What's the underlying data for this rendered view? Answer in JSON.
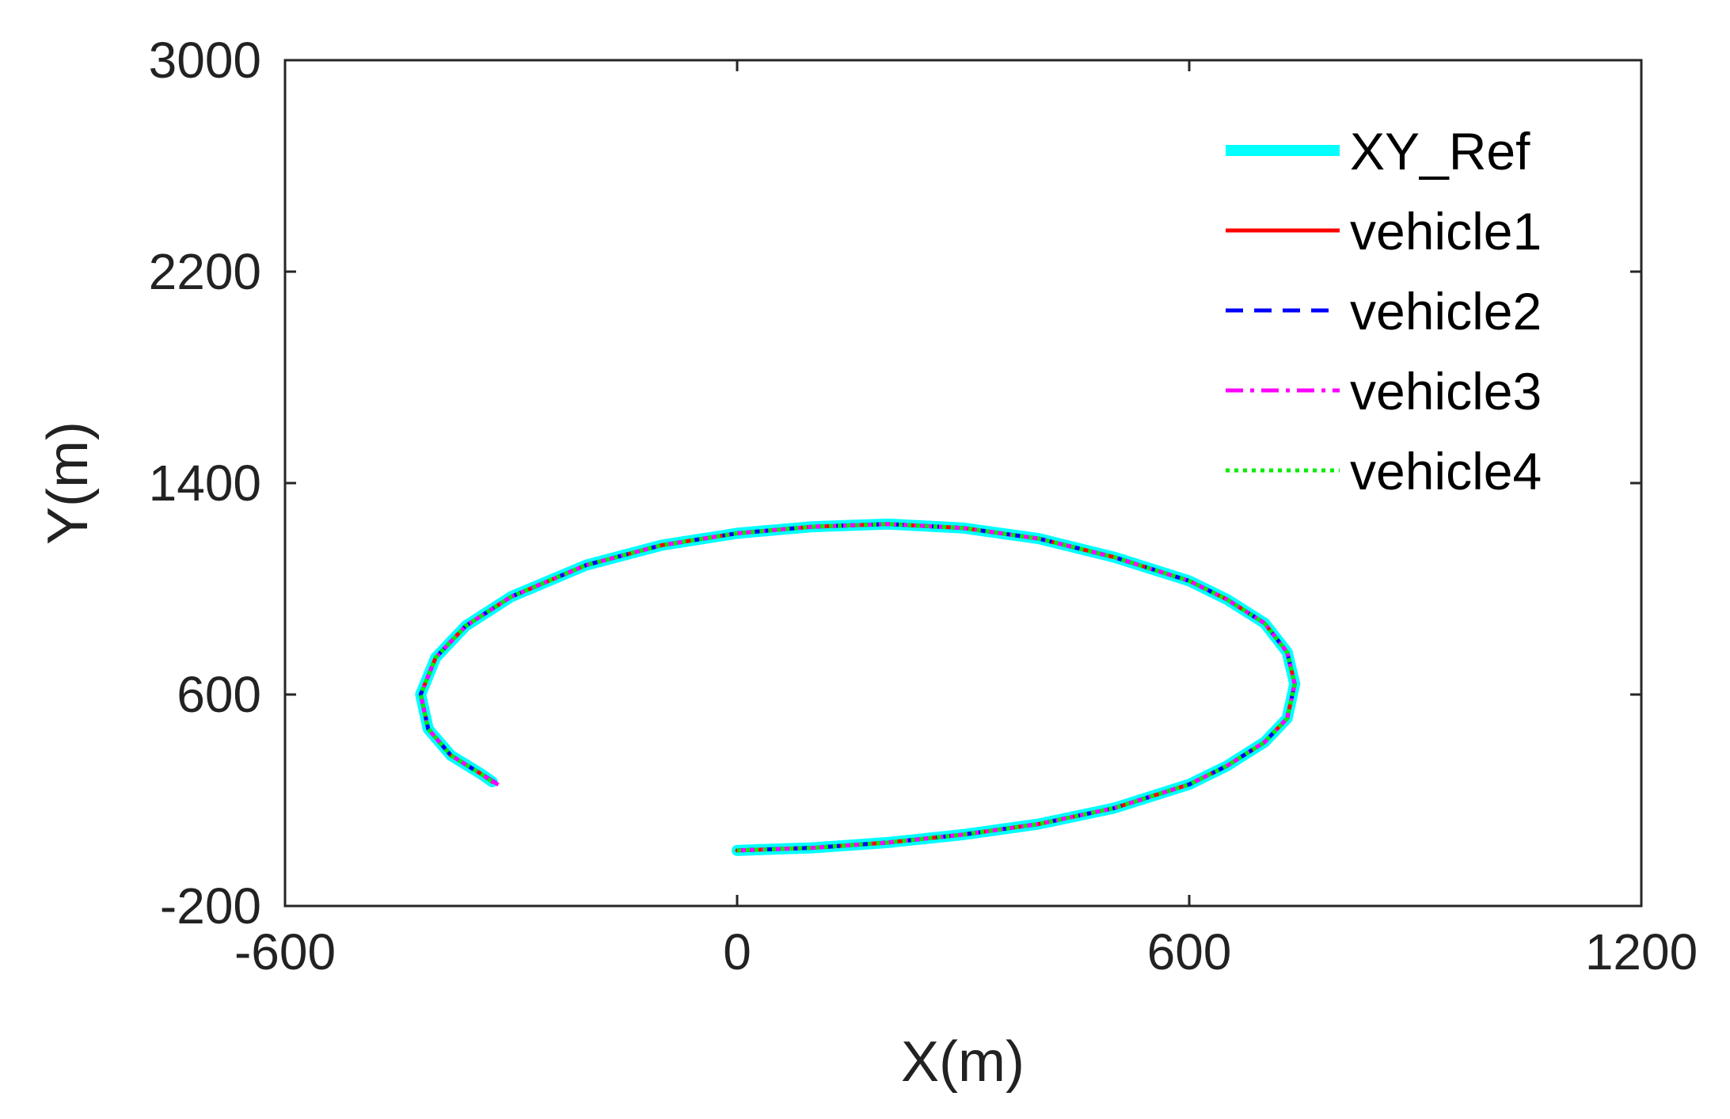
{
  "chart_data": {
    "type": "line",
    "title": "",
    "xlabel": "X(m)",
    "ylabel": "Y(m)",
    "xlim": [
      -600,
      1200
    ],
    "ylim": [
      -200,
      3000
    ],
    "xticks": [
      -600,
      0,
      600,
      1200
    ],
    "yticks": [
      -200,
      600,
      1400,
      2200,
      3000
    ],
    "xtick_labels": [
      "-600",
      "0",
      "600",
      "1200"
    ],
    "ytick_labels": [
      "-200",
      "600",
      "1400",
      "2200",
      "3000"
    ],
    "grid": false,
    "legend_position": "top-right",
    "series": [
      {
        "name": "XY_Ref",
        "color": "#00ffff",
        "style": "solid-thick",
        "x": [
          0,
          100,
          200,
          300,
          400,
          500,
          600,
          650,
          700,
          730,
          740,
          730,
          700,
          650,
          600,
          500,
          400,
          300,
          200,
          100,
          0,
          -100,
          -200,
          -300,
          -360,
          -400,
          -420,
          -410,
          -380,
          -340,
          -325
        ],
        "y": [
          10,
          20,
          40,
          70,
          110,
          170,
          260,
          330,
          420,
          510,
          640,
          760,
          870,
          960,
          1030,
          1120,
          1190,
          1230,
          1245,
          1235,
          1210,
          1165,
          1090,
          970,
          860,
          740,
          600,
          470,
          370,
          300,
          270
        ]
      },
      {
        "name": "vehicle1",
        "color": "#ff0000",
        "style": "solid",
        "x": [
          0,
          100,
          200,
          300,
          400,
          500,
          600,
          650,
          700,
          730,
          740,
          730,
          700,
          650,
          600,
          500,
          400,
          300,
          200,
          100,
          0,
          -100,
          -200,
          -300,
          -360,
          -400,
          -420,
          -410,
          -380,
          -340,
          -325
        ],
        "y": [
          10,
          20,
          40,
          70,
          110,
          170,
          260,
          330,
          420,
          510,
          640,
          760,
          870,
          960,
          1030,
          1120,
          1190,
          1230,
          1245,
          1235,
          1210,
          1165,
          1090,
          970,
          860,
          740,
          600,
          470,
          370,
          300,
          270
        ]
      },
      {
        "name": "vehicle2",
        "color": "#0000ff",
        "style": "dashed",
        "x": [
          0,
          100,
          200,
          300,
          400,
          500,
          600,
          650,
          700,
          730,
          740,
          730,
          700,
          650,
          600,
          500,
          400,
          300,
          200,
          100,
          0,
          -100,
          -200,
          -300,
          -360,
          -400,
          -420,
          -410,
          -380,
          -340,
          -320
        ],
        "y": [
          10,
          20,
          40,
          70,
          110,
          170,
          260,
          330,
          420,
          510,
          640,
          760,
          870,
          960,
          1030,
          1120,
          1190,
          1230,
          1245,
          1235,
          1210,
          1165,
          1090,
          970,
          860,
          740,
          600,
          470,
          370,
          300,
          265
        ]
      },
      {
        "name": "vehicle3",
        "color": "#ff00ff",
        "style": "dashdot",
        "x": [
          0,
          100,
          200,
          300,
          400,
          500,
          600,
          650,
          700,
          730,
          740,
          730,
          700,
          650,
          600,
          500,
          400,
          300,
          200,
          100,
          0,
          -100,
          -200,
          -300,
          -360,
          -400,
          -420,
          -410,
          -380,
          -340,
          -315
        ],
        "y": [
          10,
          20,
          40,
          70,
          110,
          170,
          260,
          330,
          420,
          510,
          640,
          760,
          870,
          960,
          1030,
          1120,
          1190,
          1230,
          1245,
          1235,
          1210,
          1165,
          1090,
          970,
          860,
          740,
          600,
          470,
          370,
          300,
          255
        ]
      },
      {
        "name": "vehicle4",
        "color": "#00ee00",
        "style": "dotted",
        "x": [
          0,
          100,
          200,
          300,
          400,
          500,
          600,
          650,
          700,
          730,
          740,
          730,
          700,
          650,
          600,
          500,
          400,
          300,
          200,
          100,
          0,
          -100,
          -200,
          -300,
          -360,
          -400,
          -420,
          -410,
          -380,
          -340,
          -325
        ],
        "y": [
          10,
          20,
          40,
          70,
          110,
          170,
          260,
          330,
          420,
          510,
          640,
          760,
          870,
          960,
          1030,
          1120,
          1190,
          1230,
          1245,
          1235,
          1210,
          1165,
          1090,
          970,
          860,
          740,
          600,
          470,
          370,
          300,
          270
        ]
      }
    ]
  }
}
